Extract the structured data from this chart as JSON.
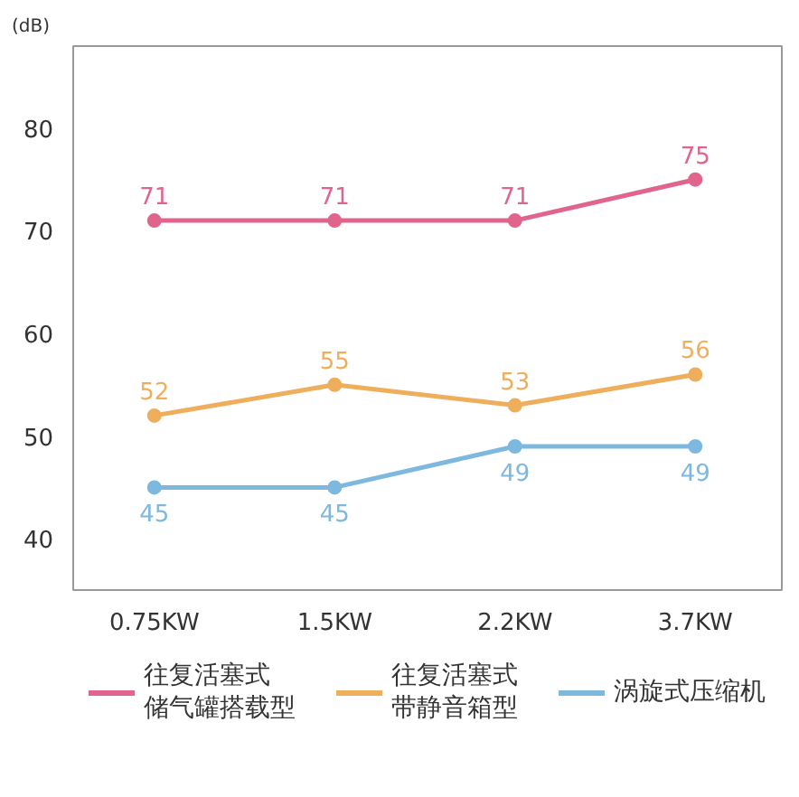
{
  "chart_data": {
    "type": "line",
    "ylabel": "(dB)",
    "categories": [
      "0.75KW",
      "1.5KW",
      "2.2KW",
      "3.7KW"
    ],
    "series": [
      {
        "name": "往复活塞式储气罐搭载型",
        "color": "#e0648c",
        "values": [
          71,
          71,
          71,
          75
        ]
      },
      {
        "name": "往复活塞式带静音箱型",
        "color": "#eeae5c",
        "values": [
          52,
          55,
          53,
          56
        ]
      },
      {
        "name": "涡旋式压缩机",
        "color": "#7db9de",
        "values": [
          45,
          45,
          49,
          49
        ]
      }
    ],
    "ylim": [
      35,
      88
    ],
    "yticks": [
      40,
      50,
      60,
      70,
      80
    ],
    "grid": false,
    "legend": "bottom",
    "marker": "circle",
    "line_style": "solid",
    "data_labels": true
  }
}
